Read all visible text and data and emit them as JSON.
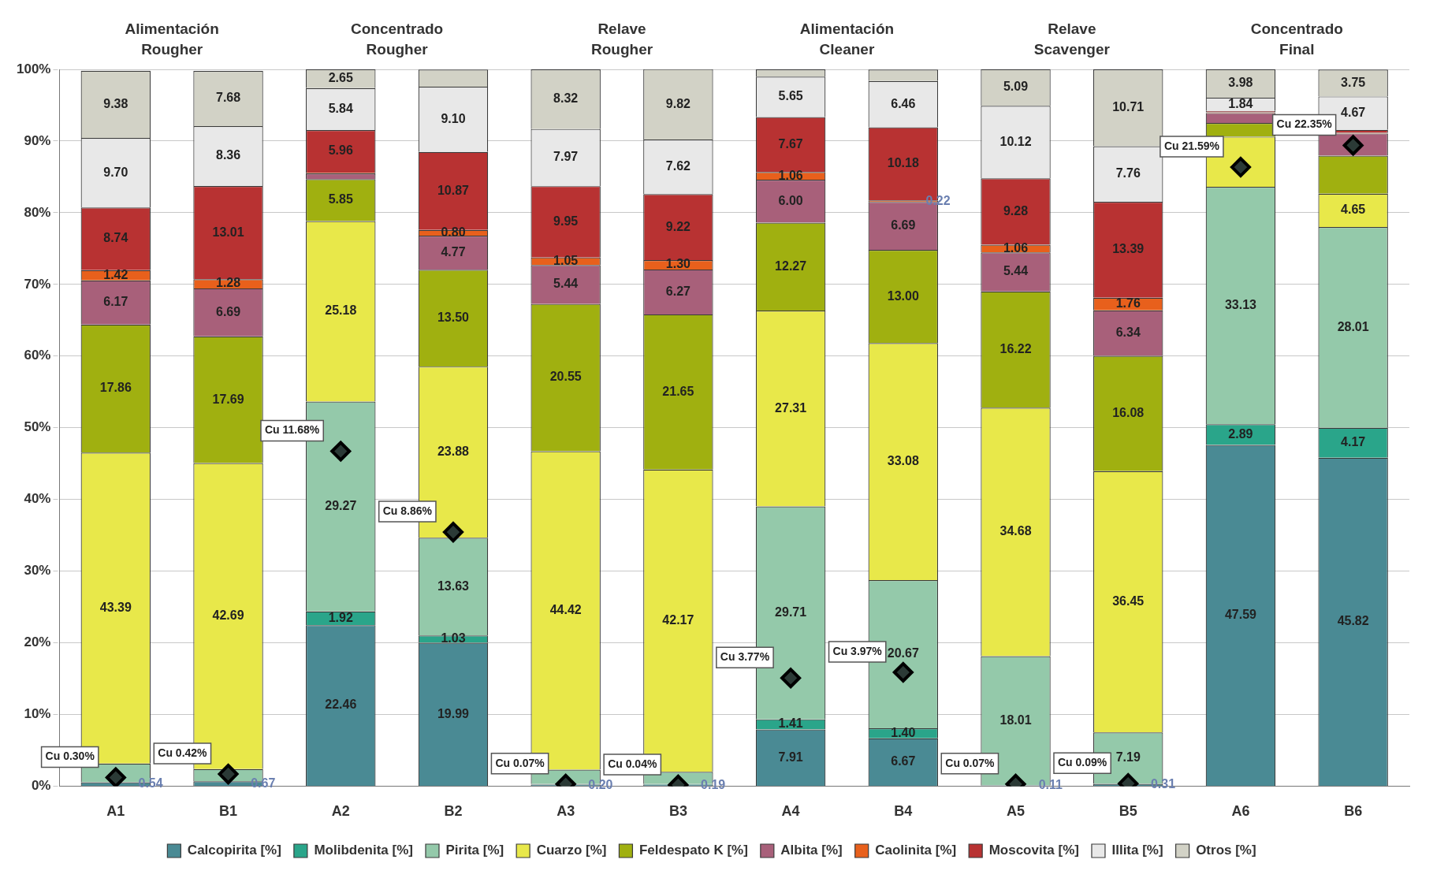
{
  "chart_data": {
    "type": "bar",
    "stacked": true,
    "categories": [
      "A1",
      "B1",
      "A2",
      "B2",
      "A3",
      "B3",
      "A4",
      "B4",
      "A5",
      "B5",
      "A6",
      "B6"
    ],
    "ylim": [
      0,
      100
    ],
    "yticks": [
      {
        "value": 0,
        "label": "0%"
      },
      {
        "value": 10,
        "label": "10%"
      },
      {
        "value": 20,
        "label": "20%"
      },
      {
        "value": 30,
        "label": "30%"
      },
      {
        "value": 40,
        "label": "40%"
      },
      {
        "value": 50,
        "label": "50%"
      },
      {
        "value": 60,
        "label": "60%"
      },
      {
        "value": 70,
        "label": "70%"
      },
      {
        "value": 80,
        "label": "80%"
      },
      {
        "value": 90,
        "label": "90%"
      },
      {
        "value": 100,
        "label": "100%"
      }
    ],
    "y2lim": [
      0,
      25
    ],
    "tick_labels": "xy",
    "grid": "y",
    "legend": "bottom",
    "annotations": [
      "Alimentación\nRougher",
      "Concentrado\nRougher",
      "Relave\nRougher",
      "Alimentación\nCleaner",
      "Relave\nScavenger",
      "Concentrado\nFinal"
    ],
    "series": [
      {
        "name": "Calcopirita [%]",
        "color": "#4a8a94",
        "values": [
          0.54,
          0.67,
          22.46,
          19.99,
          0.2,
          0.19,
          7.91,
          6.67,
          0.11,
          0.31,
          47.59,
          45.82
        ],
        "value_labels": [
          "0.54",
          "0.67",
          "22.46",
          "19.99",
          "0.20",
          "0.19",
          "7.91",
          "6.67",
          "0.11",
          "0.31",
          "47.59",
          "45.82"
        ]
      },
      {
        "name": "Molibdenita [%]",
        "color": "#2aa58a",
        "values": [
          null,
          null,
          1.92,
          1.03,
          0.1,
          0.1,
          1.41,
          1.4,
          0,
          0,
          2.89,
          4.17
        ],
        "value_labels": [
          null,
          null,
          "1.92",
          "1.03",
          null,
          null,
          "1.41",
          "1.40",
          null,
          null,
          "2.89",
          "4.17"
        ]
      },
      {
        "name": "Pirita [%]",
        "color": "#94c9aa",
        "values": [
          2.6,
          1.7,
          29.27,
          13.63,
          2.0,
          1.7,
          29.71,
          20.67,
          18.01,
          7.19,
          33.13,
          28.01
        ],
        "value_labels": [
          null,
          null,
          "29.27",
          "13.63",
          null,
          null,
          "29.71",
          "20.67",
          "18.01",
          "7.19",
          "33.13",
          "28.01"
        ]
      },
      {
        "name": "Cuarzo [%]",
        "color": "#e8e84a",
        "values": [
          43.39,
          42.69,
          25.18,
          23.88,
          44.42,
          42.17,
          27.31,
          33.08,
          34.68,
          36.45,
          7.0,
          4.65
        ],
        "value_labels": [
          "43.39",
          "42.69",
          "25.18",
          "23.88",
          "44.42",
          "42.17",
          "27.31",
          "33.08",
          "34.68",
          "36.45",
          null,
          "4.65"
        ]
      },
      {
        "name": "Feldespato K [%]",
        "color": "#a0b010",
        "values": [
          17.86,
          17.69,
          5.85,
          13.5,
          20.55,
          21.65,
          12.27,
          13.0,
          16.22,
          16.08,
          1.9,
          5.3
        ],
        "value_labels": [
          "17.86",
          "17.69",
          "5.85",
          "13.50",
          "20.55",
          "21.65",
          "12.27",
          "13.00",
          "16.22",
          "16.08",
          null,
          null
        ]
      },
      {
        "name": "Albita [%]",
        "color": "#a8607a",
        "values": [
          6.17,
          6.69,
          0.8,
          4.77,
          5.44,
          6.27,
          6.0,
          6.69,
          5.44,
          6.34,
          1.4,
          3.1
        ],
        "value_labels": [
          "6.17",
          "6.69",
          null,
          "4.77",
          "5.44",
          "6.27",
          "6.00",
          "6.69",
          "5.44",
          "6.34",
          null,
          null
        ]
      },
      {
        "name": "Caolinita [%]",
        "color": "#e8601c",
        "values": [
          1.42,
          1.28,
          0.1,
          0.8,
          1.05,
          1.3,
          1.06,
          0.22,
          1.06,
          1.76,
          0.1,
          0.1
        ],
        "value_labels": [
          "1.42",
          "1.28",
          null,
          "0.80",
          "1.05",
          "1.30",
          "1.06",
          "0.22",
          "1.06",
          "1.76",
          null,
          null
        ]
      },
      {
        "name": "Moscovita [%]",
        "color": "#b83232",
        "values": [
          8.74,
          13.01,
          5.96,
          10.87,
          9.95,
          9.22,
          7.67,
          10.18,
          9.28,
          13.39,
          0.2,
          0.4
        ],
        "value_labels": [
          "8.74",
          "13.01",
          "5.96",
          "10.87",
          "9.95",
          "9.22",
          "7.67",
          "10.18",
          "9.28",
          "13.39",
          null,
          null
        ]
      },
      {
        "name": "Illita [%]",
        "color": "#e8e8e8",
        "values": [
          9.7,
          8.36,
          5.84,
          9.1,
          7.97,
          7.62,
          5.65,
          6.46,
          10.12,
          7.76,
          1.84,
          4.67
        ],
        "value_labels": [
          "9.70",
          "8.36",
          "5.84",
          "9.10",
          "7.97",
          "7.62",
          "5.65",
          "6.46",
          "10.12",
          "7.76",
          "1.84",
          "4.67"
        ]
      },
      {
        "name": "Otros [%]",
        "color": "#d2d2c6",
        "values": [
          9.38,
          7.68,
          2.65,
          2.4,
          8.32,
          9.82,
          1.0,
          1.6,
          5.09,
          10.71,
          3.98,
          3.75
        ],
        "value_labels": [
          "9.38",
          "7.68",
          "2.65",
          null,
          "8.32",
          "9.82",
          null,
          null,
          "5.09",
          "10.71",
          "3.98",
          "3.75"
        ]
      },
      {
        "type": "scatter",
        "axis": "y2",
        "marker": "diamond",
        "color": "#2b3a36",
        "x": [
          "A1",
          "B1",
          "A2",
          "B2",
          "A3",
          "B3",
          "A4",
          "B4",
          "A5",
          "B5",
          "A6",
          "B6"
        ],
        "values": [
          0.3,
          0.42,
          11.68,
          8.86,
          0.07,
          0.04,
          3.77,
          3.97,
          0.07,
          0.09,
          21.59,
          22.35
        ],
        "value_labels": [
          "Cu 0.30%",
          "Cu 0.42%",
          "Cu 11.68%",
          "Cu 8.86%",
          "Cu 0.07%",
          "Cu 0.04%",
          "Cu 3.77%",
          "Cu 3.97%",
          "Cu 0.07%",
          "Cu 0.09%",
          "Cu 21.59%",
          "Cu 22.35%"
        ]
      }
    ]
  }
}
